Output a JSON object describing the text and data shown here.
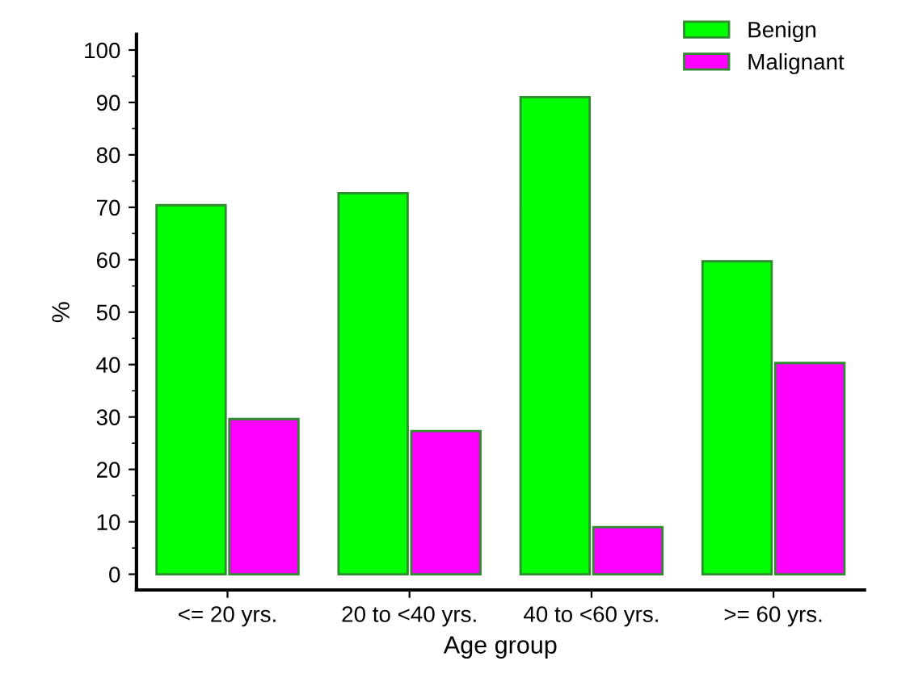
{
  "chart_data": {
    "type": "bar",
    "xlabel": "Age group",
    "ylabel": "%",
    "categories": [
      "<= 20 yrs.",
      "20 to <40 yrs.",
      "40 to <60 yrs.",
      ">= 60 yrs."
    ],
    "series": [
      {
        "name": "Benign",
        "color": "#00ff00",
        "values": [
          70.4,
          72.7,
          91.0,
          59.7
        ]
      },
      {
        "name": "Malignant",
        "color": "#ff00ff",
        "values": [
          29.6,
          27.3,
          9.0,
          40.3
        ]
      }
    ],
    "ylim": [
      -3,
      103
    ],
    "yticks": [
      0,
      10,
      20,
      30,
      40,
      50,
      60,
      70,
      80,
      90,
      100
    ],
    "grid": false,
    "legend": "top right"
  }
}
